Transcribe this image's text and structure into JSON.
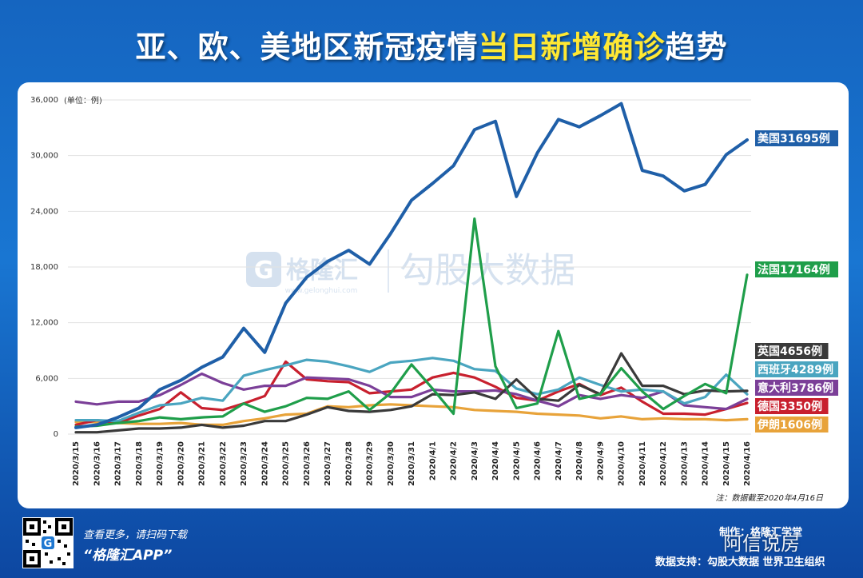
{
  "title": {
    "part1": "亚、欧、美地区新冠疫情",
    "part2": "当日新增确诊",
    "part3": "趋势"
  },
  "watermark": {
    "brand": "格隆汇",
    "domain": "www.gelonghui.com",
    "partner": "勾股大数据"
  },
  "footer": {
    "scan_text": "查看更多，请扫码下载",
    "app_text": "“格隆汇APP”",
    "maker": "制作：格隆汇学堂",
    "overlay": "阿信说房",
    "support": "数据支持：勾股大数据  世界卫生组织"
  },
  "colors": {
    "us": "#1f5fa8",
    "fr": "#1f9e4a",
    "uk": "#3a3a3a",
    "es": "#4aa5c0",
    "it": "#7b3f98",
    "de": "#c8202e",
    "ir": "#e8a33a"
  },
  "chart_data": {
    "type": "line",
    "unit_note": "(单位：例)",
    "date_note": "注：数据截至2020年4月16日",
    "ylim": [
      0,
      36000
    ],
    "yticks": [
      "0",
      "6,000",
      "12,000",
      "18,000",
      "24,000",
      "30,000",
      "36,000"
    ],
    "ytick_values": [
      0,
      6000,
      12000,
      18000,
      24000,
      30000,
      36000
    ],
    "x": [
      "2020/3/15",
      "2020/3/16",
      "2020/3/17",
      "2020/3/18",
      "2020/3/19",
      "2020/3/20",
      "2020/3/21",
      "2020/3/22",
      "2020/3/23",
      "2020/3/24",
      "2020/3/25",
      "2020/3/26",
      "2020/3/27",
      "2020/3/28",
      "2020/3/29",
      "2020/3/30",
      "2020/3/31",
      "2020/4/1",
      "2020/4/2",
      "2020/4/3",
      "2020/4/4",
      "2020/4/5",
      "2020/4/6",
      "2020/4/7",
      "2020/4/8",
      "2020/4/9",
      "2020/4/10",
      "2020/4/11",
      "2020/4/12",
      "2020/4/13",
      "2020/4/14",
      "2020/4/15",
      "2020/4/16"
    ],
    "series": [
      {
        "key": "us",
        "name": "美国",
        "label": "美国31695例",
        "values": [
          700,
          1000,
          1800,
          2800,
          4800,
          5800,
          7200,
          8300,
          11400,
          8800,
          14100,
          16900,
          18600,
          19800,
          18300,
          21600,
          25200,
          27000,
          28900,
          32800,
          33700,
          25600,
          30300,
          33900,
          33100,
          34300,
          35600,
          28400,
          27800,
          26200,
          26900,
          30100,
          31695
        ]
      },
      {
        "key": "fr",
        "name": "法国",
        "label": "法国17164例",
        "values": [
          800,
          900,
          1200,
          1400,
          1800,
          1600,
          1800,
          1900,
          3300,
          2400,
          3000,
          3900,
          3800,
          4600,
          2600,
          4400,
          7500,
          4900,
          2200,
          23200,
          7300,
          2800,
          3300,
          11100,
          3800,
          4300,
          7100,
          4600,
          2700,
          4100,
          5400,
          4400,
          17164
        ]
      },
      {
        "key": "uk",
        "name": "英国",
        "label": "英国4656例",
        "values": [
          200,
          200,
          400,
          600,
          600,
          700,
          1000,
          700,
          900,
          1400,
          1400,
          2100,
          2900,
          2500,
          2400,
          2600,
          3000,
          4300,
          4200,
          4500,
          3800,
          5900,
          3800,
          3600,
          5300,
          4300,
          8700,
          5200,
          5200,
          4300,
          4700,
          4600,
          4656
        ]
      },
      {
        "key": "es",
        "name": "西班牙",
        "label": "西班牙4289例",
        "values": [
          1500,
          1500,
          1400,
          2300,
          3100,
          3300,
          3900,
          3600,
          6300,
          6900,
          7400,
          8000,
          7800,
          7300,
          6700,
          7700,
          7900,
          8200,
          7900,
          7000,
          6800,
          4900,
          4300,
          4800,
          6100,
          5300,
          4600,
          4800,
          4600,
          3300,
          4000,
          6400,
          4289
        ]
      },
      {
        "key": "it",
        "name": "意大利",
        "label": "意大利3786例",
        "values": [
          3500,
          3200,
          3500,
          3500,
          4200,
          5300,
          6500,
          5500,
          4800,
          5200,
          5200,
          6100,
          6000,
          5900,
          5200,
          4000,
          4000,
          4800,
          4600,
          4600,
          4700,
          4300,
          3600,
          3000,
          4200,
          3800,
          4200,
          3900,
          4600,
          3100,
          2900,
          2700,
          3786
        ]
      },
      {
        "key": "de",
        "name": "德国",
        "label": "德国3350例",
        "values": [
          1000,
          1500,
          1200,
          2000,
          2700,
          4500,
          2800,
          2600,
          3300,
          4100,
          7800,
          5900,
          5700,
          5600,
          4400,
          4600,
          4800,
          6100,
          6600,
          6100,
          5100,
          3900,
          3600,
          4600,
          5400,
          4200,
          5000,
          3500,
          2200,
          2200,
          2100,
          2700,
          3350
        ]
      },
      {
        "key": "ir",
        "name": "伊朗",
        "label": "伊朗1606例",
        "values": [
          1300,
          1300,
          1200,
          1100,
          1100,
          1200,
          1000,
          1000,
          1400,
          1700,
          2100,
          2200,
          3000,
          2900,
          3100,
          3200,
          3100,
          3000,
          2900,
          2600,
          2500,
          2400,
          2200,
          2100,
          2000,
          1700,
          1900,
          1600,
          1700,
          1600,
          1600,
          1500,
          1606
        ]
      }
    ]
  }
}
